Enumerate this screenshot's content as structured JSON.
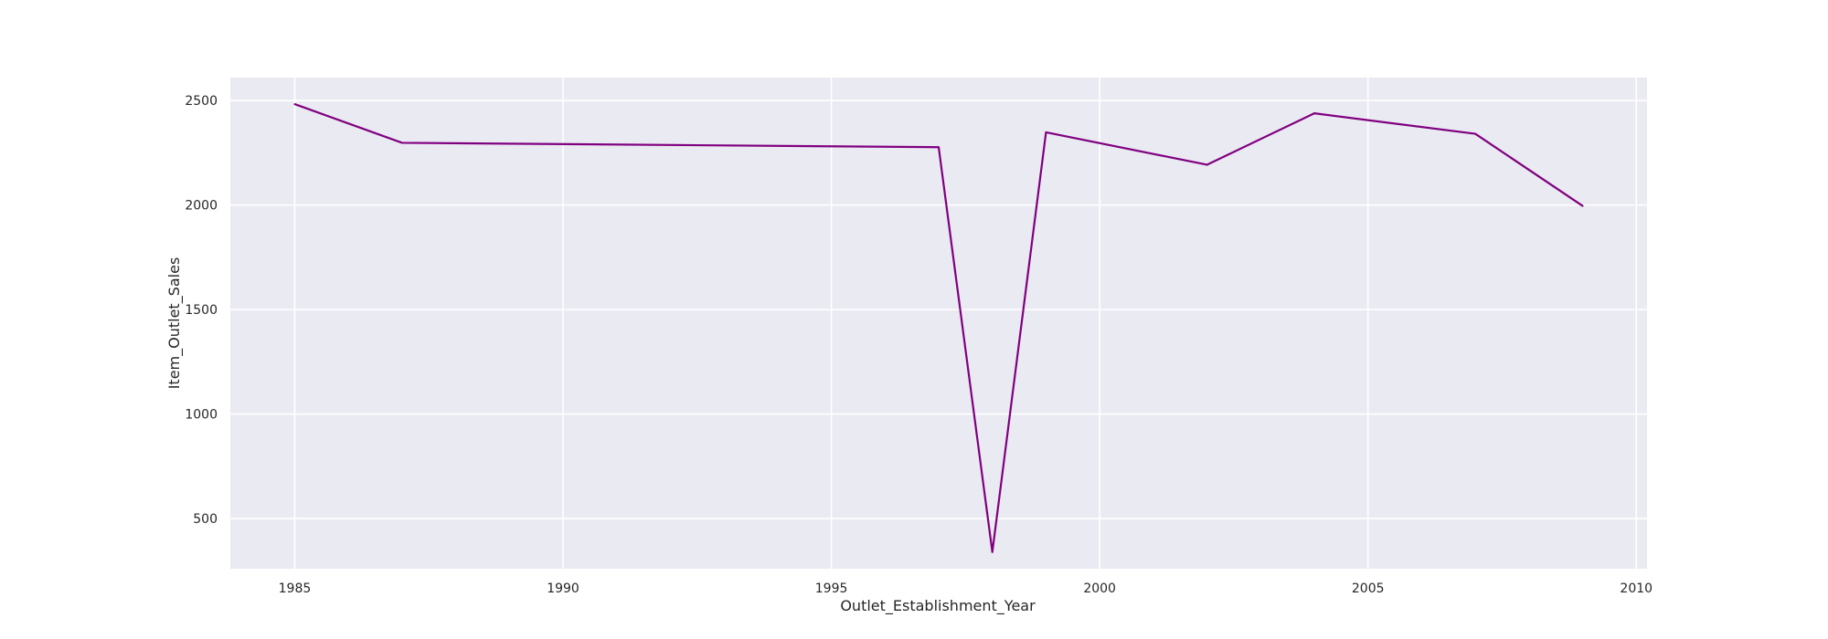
{
  "chart_data": {
    "type": "line",
    "title": "",
    "xlabel": "Outlet_Establishment_Year",
    "ylabel": "Item_Outlet_Sales",
    "xlim": [
      1983.8,
      2010.2
    ],
    "ylim": [
      260,
      2610
    ],
    "xticks": [
      1985,
      1990,
      1995,
      2000,
      2005,
      2010
    ],
    "yticks": [
      500,
      1000,
      1500,
      2000,
      2500
    ],
    "grid": true,
    "background_color": "#eaeaf2",
    "grid_color": "#ffffff",
    "series": [
      {
        "color": "#800080",
        "x": [
          1985,
          1987,
          1997,
          1998,
          1999,
          2002,
          2004,
          2007,
          2009
        ],
        "y": [
          2483,
          2298,
          2277,
          340,
          2348,
          2193,
          2439,
          2341,
          1996
        ]
      }
    ]
  }
}
